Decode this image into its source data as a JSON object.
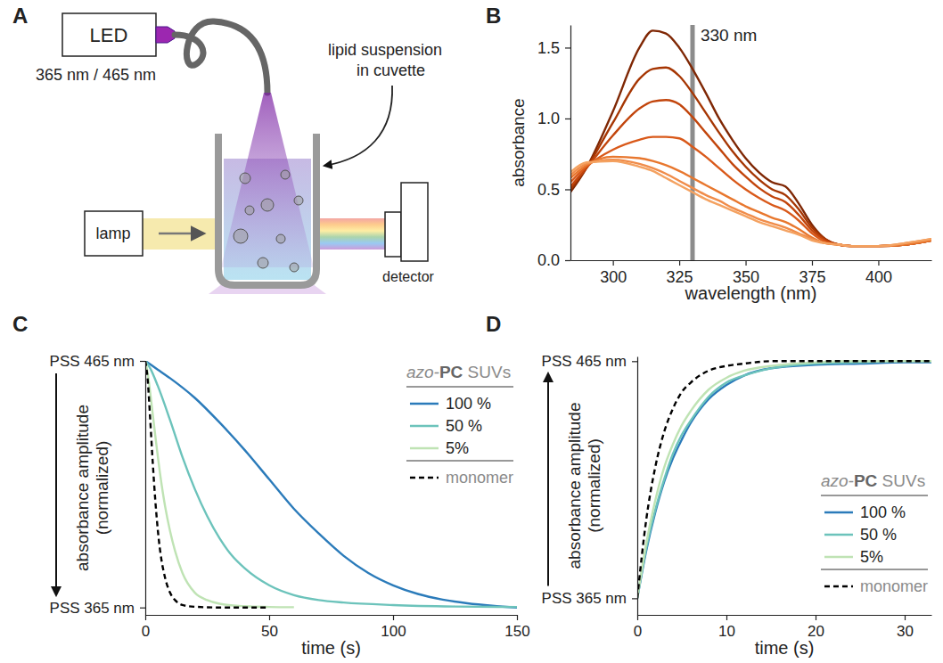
{
  "diagram": {
    "letter": "A",
    "led": "LED",
    "wavelengths": "365 nm / 465 nm",
    "sample": "lipid suspension in cuvette",
    "lamp": "lamp",
    "detector": "detector"
  },
  "chart_data": [
    {
      "letter": "B",
      "type": "line",
      "xlabel": "wavelength (nm)",
      "ylabel": "absorbance",
      "xlim": [
        284,
        420
      ],
      "xticks": [
        300,
        325,
        350,
        375,
        400
      ],
      "ylim": [
        0,
        1.66
      ],
      "yticks": [
        {
          "value": 0,
          "label": "0.0"
        },
        {
          "value": 0.5,
          "label": "0.5"
        },
        {
          "value": 1,
          "label": "1.0"
        },
        {
          "value": 1.5,
          "label": "1.5"
        }
      ],
      "annotations": [
        {
          "x": 330,
          "text": "330 nm"
        }
      ],
      "x": [
        284,
        290,
        300,
        310,
        315,
        320,
        325,
        330,
        335,
        340,
        345,
        350,
        355,
        360,
        365,
        370,
        375,
        380,
        385,
        390,
        400,
        410,
        420
      ],
      "series": [
        {
          "color": "#7f2704",
          "values": [
            0.48,
            0.65,
            1.05,
            1.5,
            1.62,
            1.6,
            1.5,
            1.35,
            1.18,
            1.0,
            0.85,
            0.72,
            0.62,
            0.55,
            0.52,
            0.4,
            0.25,
            0.15,
            0.11,
            0.1,
            0.1,
            0.11,
            0.14
          ]
        },
        {
          "color": "#a63603",
          "values": [
            0.5,
            0.65,
            0.97,
            1.28,
            1.35,
            1.36,
            1.3,
            1.18,
            1.04,
            0.9,
            0.77,
            0.66,
            0.57,
            0.5,
            0.46,
            0.36,
            0.23,
            0.15,
            0.11,
            0.1,
            0.1,
            0.11,
            0.14
          ]
        },
        {
          "color": "#c2450c",
          "values": [
            0.52,
            0.65,
            0.88,
            1.07,
            1.12,
            1.13,
            1.1,
            1.01,
            0.9,
            0.79,
            0.68,
            0.59,
            0.51,
            0.45,
            0.41,
            0.32,
            0.21,
            0.14,
            0.11,
            0.1,
            0.1,
            0.11,
            0.14
          ]
        },
        {
          "color": "#d9591a",
          "values": [
            0.55,
            0.66,
            0.78,
            0.85,
            0.87,
            0.87,
            0.86,
            0.8,
            0.73,
            0.65,
            0.57,
            0.5,
            0.44,
            0.39,
            0.35,
            0.28,
            0.19,
            0.13,
            0.11,
            0.1,
            0.1,
            0.11,
            0.14
          ]
        },
        {
          "color": "#e8772e",
          "values": [
            0.58,
            0.67,
            0.73,
            0.72,
            0.7,
            0.67,
            0.63,
            0.58,
            0.53,
            0.48,
            0.43,
            0.38,
            0.34,
            0.3,
            0.27,
            0.22,
            0.16,
            0.12,
            0.11,
            0.1,
            0.1,
            0.11,
            0.14
          ]
        },
        {
          "color": "#f08c4a",
          "values": [
            0.6,
            0.68,
            0.71,
            0.68,
            0.65,
            0.61,
            0.56,
            0.51,
            0.46,
            0.42,
            0.37,
            0.33,
            0.29,
            0.26,
            0.23,
            0.19,
            0.15,
            0.12,
            0.11,
            0.1,
            0.1,
            0.12,
            0.15
          ]
        },
        {
          "color": "#f4a261",
          "values": [
            0.62,
            0.69,
            0.7,
            0.66,
            0.63,
            0.58,
            0.53,
            0.48,
            0.43,
            0.39,
            0.35,
            0.31,
            0.27,
            0.24,
            0.21,
            0.18,
            0.14,
            0.12,
            0.11,
            0.1,
            0.1,
            0.12,
            0.15
          ]
        }
      ]
    },
    {
      "letter": "C",
      "type": "line",
      "xlabel": "time (s)",
      "ylabel": "absorbance amplitude (normalized)",
      "xlim": [
        0,
        150
      ],
      "xticks": [
        0,
        50,
        100,
        150
      ],
      "ylim": [
        -0.03,
        1.0
      ],
      "yticks": [
        {
          "value": 0,
          "label": "PSS 365 nm"
        },
        {
          "value": 1,
          "label": "PSS 465 nm"
        }
      ],
      "legend": "upper right",
      "legend_title": "azo-PC SUVs",
      "series": [
        {
          "name": "100 %",
          "color": "#2b7bba",
          "x": [
            0,
            5,
            10,
            20,
            30,
            40,
            50,
            60,
            70,
            80,
            90,
            100,
            110,
            120,
            130,
            140,
            150
          ],
          "values": [
            1.0,
            0.965,
            0.93,
            0.85,
            0.75,
            0.64,
            0.52,
            0.4,
            0.3,
            0.21,
            0.14,
            0.09,
            0.055,
            0.032,
            0.017,
            0.007,
            0.0
          ]
        },
        {
          "name": "50 %",
          "color": "#6cc3bb",
          "x": [
            0,
            2,
            5,
            10,
            15,
            20,
            25,
            30,
            35,
            40,
            50,
            60,
            70,
            80,
            100,
            125,
            150
          ],
          "values": [
            1.0,
            0.97,
            0.9,
            0.76,
            0.61,
            0.48,
            0.37,
            0.28,
            0.21,
            0.16,
            0.09,
            0.05,
            0.03,
            0.02,
            0.01,
            0.004,
            0.002
          ]
        },
        {
          "name": "5%",
          "color": "#bfe3b4",
          "x": [
            0,
            1,
            2,
            4,
            6,
            8,
            10,
            12,
            15,
            20,
            25,
            30,
            40,
            50,
            60
          ],
          "values": [
            1.0,
            0.95,
            0.87,
            0.7,
            0.54,
            0.41,
            0.31,
            0.23,
            0.14,
            0.06,
            0.03,
            0.015,
            0.005,
            0.002,
            0.001
          ]
        },
        {
          "name": "monomer",
          "color": "#000000",
          "line_style": "dashed",
          "x": [
            0,
            1,
            2,
            3,
            4,
            5,
            6,
            8,
            10,
            12,
            15,
            20,
            30,
            40,
            50
          ],
          "values": [
            1.0,
            0.92,
            0.76,
            0.59,
            0.44,
            0.32,
            0.23,
            0.12,
            0.06,
            0.03,
            0.01,
            0.003,
            0.0,
            0.0,
            0.0
          ]
        }
      ]
    },
    {
      "letter": "D",
      "type": "line",
      "xlabel": "time (s)",
      "ylabel": "absorbance amplitude (normalized)",
      "xlim": [
        0,
        33
      ],
      "xticks": [
        0,
        10,
        20,
        30
      ],
      "ylim": [
        -0.07,
        1.02
      ],
      "yticks": [
        {
          "value": 0,
          "label": "PSS 365 nm"
        },
        {
          "value": 1,
          "label": "PSS 465 nm"
        }
      ],
      "legend": "lower right",
      "legend_title": "azo-PC SUVs",
      "x": [
        0,
        1,
        2,
        3,
        4,
        5,
        6,
        8,
        10,
        12,
        15,
        20,
        25,
        30,
        33
      ],
      "series": [
        {
          "name": "100 %",
          "color": "#2b7bba",
          "values": [
            0.0,
            0.2,
            0.36,
            0.49,
            0.59,
            0.67,
            0.74,
            0.84,
            0.9,
            0.94,
            0.97,
            0.985,
            0.99,
            0.995,
            0.995
          ]
        },
        {
          "name": "50 %",
          "color": "#6cc3bb",
          "values": [
            0.0,
            0.21,
            0.37,
            0.5,
            0.61,
            0.69,
            0.75,
            0.85,
            0.91,
            0.94,
            0.97,
            0.99,
            0.995,
            1.0,
            1.0
          ]
        },
        {
          "name": "5%",
          "color": "#bfe3b4",
          "values": [
            0.0,
            0.23,
            0.41,
            0.55,
            0.65,
            0.73,
            0.79,
            0.88,
            0.93,
            0.96,
            0.98,
            0.995,
            1.0,
            1.0,
            1.0
          ]
        },
        {
          "name": "monomer",
          "color": "#000000",
          "line_style": "dashed",
          "values": [
            0.0,
            0.33,
            0.55,
            0.7,
            0.8,
            0.87,
            0.91,
            0.96,
            0.98,
            0.99,
            1.0,
            1.0,
            1.0,
            1.0,
            1.0
          ]
        }
      ]
    }
  ]
}
